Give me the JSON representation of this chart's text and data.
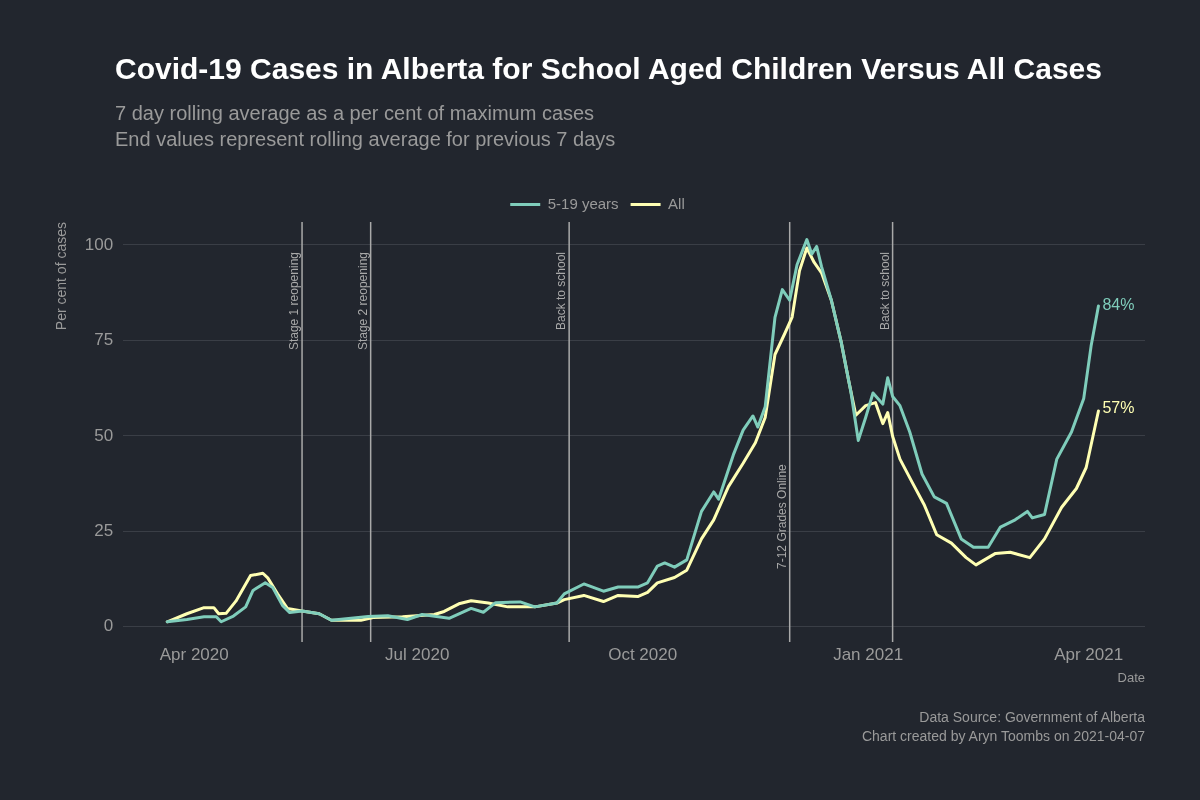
{
  "chart_data": {
    "type": "line",
    "title": "Covid-19 Cases in Alberta for School Aged Children Versus All Cases",
    "subtitle": "7 day rolling average as a per cent of maximum cases\nEnd values represent rolling average for previous 7 days",
    "xlabel": "Date",
    "ylabel": "Per cent of cases",
    "xlim": [
      "2020-03-03",
      "2021-04-24"
    ],
    "ylim": [
      -4,
      106
    ],
    "xticks": [
      {
        "value": "2020-04-01",
        "label": "Apr 2020"
      },
      {
        "value": "2020-07-01",
        "label": "Jul 2020"
      },
      {
        "value": "2020-10-01",
        "label": "Oct 2020"
      },
      {
        "value": "2021-01-01",
        "label": "Jan 2021"
      },
      {
        "value": "2021-04-01",
        "label": "Apr 2021"
      }
    ],
    "yticks": [
      0,
      25,
      50,
      75,
      100
    ],
    "grid": "y",
    "legend": "top",
    "series": [
      {
        "name": "5-19 years",
        "color": "#7fcdbb",
        "x": [
          "2020-03-21",
          "2020-03-29",
          "2020-04-05",
          "2020-04-10",
          "2020-04-12",
          "2020-04-17",
          "2020-04-22",
          "2020-04-25",
          "2020-04-30",
          "2020-05-03",
          "2020-05-07",
          "2020-05-10",
          "2020-05-15",
          "2020-05-22",
          "2020-05-27",
          "2020-06-11",
          "2020-06-19",
          "2020-06-27",
          "2020-07-03",
          "2020-07-14",
          "2020-07-23",
          "2020-07-28",
          "2020-08-02",
          "2020-08-12",
          "2020-08-18",
          "2020-08-27",
          "2020-08-30",
          "2020-09-07",
          "2020-09-15",
          "2020-09-21",
          "2020-09-29",
          "2020-10-03",
          "2020-10-07",
          "2020-10-10",
          "2020-10-14",
          "2020-10-19",
          "2020-10-25",
          "2020-10-30",
          "2020-11-01",
          "2020-11-07",
          "2020-11-11",
          "2020-11-15",
          "2020-11-17",
          "2020-11-20",
          "2020-11-24",
          "2020-11-27",
          "2020-11-30",
          "2020-12-03",
          "2020-12-07",
          "2020-12-09",
          "2020-12-11",
          "2020-12-13",
          "2020-12-17",
          "2020-12-21",
          "2020-12-25",
          "2020-12-28",
          "2020-12-31",
          "2021-01-03",
          "2021-01-07",
          "2021-01-09",
          "2021-01-11",
          "2021-01-14",
          "2021-01-18",
          "2021-01-23",
          "2021-01-28",
          "2021-02-02",
          "2021-02-08",
          "2021-02-13",
          "2021-02-19",
          "2021-02-24",
          "2021-03-02",
          "2021-03-07",
          "2021-03-09",
          "2021-03-14",
          "2021-03-19",
          "2021-03-25",
          "2021-03-30",
          "2021-04-02",
          "2021-04-05"
        ],
        "values": [
          1.3,
          1.9,
          2.6,
          2.6,
          1.3,
          2.8,
          5.2,
          9.5,
          11.5,
          10.3,
          5.6,
          3.7,
          4.1,
          3.4,
          1.7,
          2.7,
          2.9,
          1.9,
          3.2,
          2.2,
          4.8,
          3.8,
          6.3,
          6.5,
          5.2,
          6.2,
          8.6,
          11.2,
          9.3,
          10.4,
          10.4,
          11.5,
          15.9,
          16.7,
          15.6,
          17.5,
          30.2,
          35.3,
          33.4,
          45,
          51.5,
          55.2,
          52.3,
          57.6,
          81,
          88.3,
          85.5,
          94.8,
          101.4,
          97.6,
          99.6,
          94.3,
          85.5,
          74.6,
          61.4,
          48.8,
          54.8,
          61.2,
          58.3,
          65.2,
          60.3,
          57.9,
          51,
          40,
          34,
          32.3,
          23,
          20.8,
          20.8,
          26.1,
          28,
          30.2,
          28.5,
          29.4,
          43.9,
          51,
          59.8,
          73.5,
          84
        ]
      },
      {
        "name": "All",
        "color": "#ffffb3",
        "x": [
          "2020-03-21",
          "2020-03-29",
          "2020-04-05",
          "2020-04-09",
          "2020-04-11",
          "2020-04-14",
          "2020-04-18",
          "2020-04-24",
          "2020-04-29",
          "2020-05-01",
          "2020-05-05",
          "2020-05-09",
          "2020-05-15",
          "2020-05-22",
          "2020-05-27",
          "2020-06-08",
          "2020-06-13",
          "2020-06-25",
          "2020-07-08",
          "2020-07-12",
          "2020-07-18",
          "2020-07-23",
          "2020-07-30",
          "2020-08-07",
          "2020-08-18",
          "2020-08-27",
          "2020-08-30",
          "2020-09-07",
          "2020-09-15",
          "2020-09-21",
          "2020-09-29",
          "2020-10-03",
          "2020-10-07",
          "2020-10-14",
          "2020-10-19",
          "2020-10-25",
          "2020-10-30",
          "2020-11-05",
          "2020-11-11",
          "2020-11-16",
          "2020-11-20",
          "2020-11-24",
          "2020-11-28",
          "2020-12-01",
          "2020-12-04",
          "2020-12-07",
          "2020-12-10",
          "2020-12-13",
          "2020-12-17",
          "2020-12-21",
          "2020-12-24",
          "2020-12-27",
          "2020-12-31",
          "2021-01-04",
          "2021-01-07",
          "2021-01-09",
          "2021-01-11",
          "2021-01-14",
          "2021-01-19",
          "2021-01-24",
          "2021-01-29",
          "2021-02-04",
          "2021-02-10",
          "2021-02-14",
          "2021-02-22",
          "2021-02-28",
          "2021-03-08",
          "2021-03-14",
          "2021-03-21",
          "2021-03-27",
          "2021-03-31",
          "2021-04-05"
        ],
        "values": [
          1.3,
          3.4,
          5,
          5,
          3.4,
          3.5,
          6.7,
          13.4,
          14,
          12.8,
          8.6,
          4.8,
          4.1,
          3.4,
          1.7,
          1.7,
          2.4,
          2.6,
          3.2,
          4,
          6,
          6.8,
          6.2,
          5.2,
          5.2,
          6.2,
          7.1,
          8.2,
          6.6,
          8.2,
          7.9,
          9,
          11.5,
          12.9,
          14.8,
          23,
          28,
          36.7,
          42.8,
          48.2,
          54.8,
          71.3,
          76.8,
          81.1,
          93.2,
          99.2,
          95.4,
          92.7,
          85.5,
          74.6,
          64.7,
          55.4,
          57.9,
          58.7,
          53.2,
          56.1,
          49.9,
          43.9,
          37.8,
          31.8,
          24.1,
          21.9,
          18.1,
          16.2,
          19.2,
          19.5,
          18.1,
          23,
          31.3,
          36.2,
          41.7,
          56.5
        ]
      }
    ],
    "ref_lines": [
      {
        "axis": "x",
        "value": "2020-05-15",
        "label": "Stage 1 reopening",
        "color": "#a9a9a9"
      },
      {
        "axis": "x",
        "value": "2020-06-12",
        "label": "Stage 2 reopening",
        "color": "#a9a9a9"
      },
      {
        "axis": "x",
        "value": "2020-09-01",
        "label": "Back to school",
        "color": "#a9a9a9"
      },
      {
        "axis": "x",
        "value": "2020-11-30",
        "label": "7-12 Grades Online",
        "color": "#a9a9a9"
      },
      {
        "axis": "x",
        "value": "2021-01-11",
        "label": "Back to school",
        "color": "#a9a9a9"
      }
    ],
    "annotations": [
      {
        "text": "84%",
        "x": "2021-04-05",
        "y": 84
      },
      {
        "text": "57%",
        "x": "2021-04-05",
        "y": 57
      },
      "Data Source: Government of Alberta",
      "Chart created by Aryn Toombs on 2021-04-07"
    ]
  }
}
